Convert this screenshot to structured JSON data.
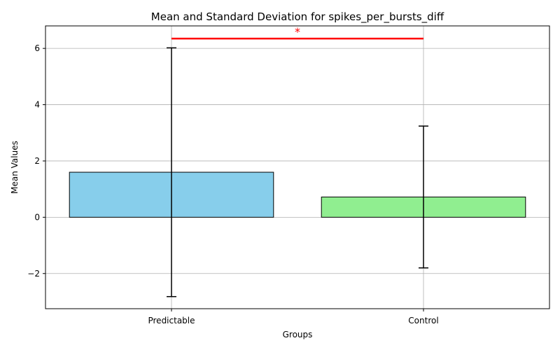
{
  "chart_data": {
    "type": "bar",
    "title": "Mean and Standard Deviation for spikes_per_bursts_diff",
    "xlabel": "Groups",
    "ylabel": "Mean Values",
    "categories": [
      "Predictable",
      "Control"
    ],
    "values": [
      1.6,
      0.72
    ],
    "errors": [
      4.42,
      2.52
    ],
    "bar_colors": [
      "#87CEEB",
      "#90EE90"
    ],
    "ylim": [
      -3.25,
      6.8
    ],
    "yticks": [
      -2,
      0,
      2,
      4,
      6
    ],
    "ytick_labels": [
      "−2",
      "0",
      "2",
      "4",
      "6"
    ],
    "grid": true,
    "significance": {
      "from": 0,
      "to": 1,
      "y": 6.35,
      "label": "*",
      "color": "#FF0000"
    }
  }
}
